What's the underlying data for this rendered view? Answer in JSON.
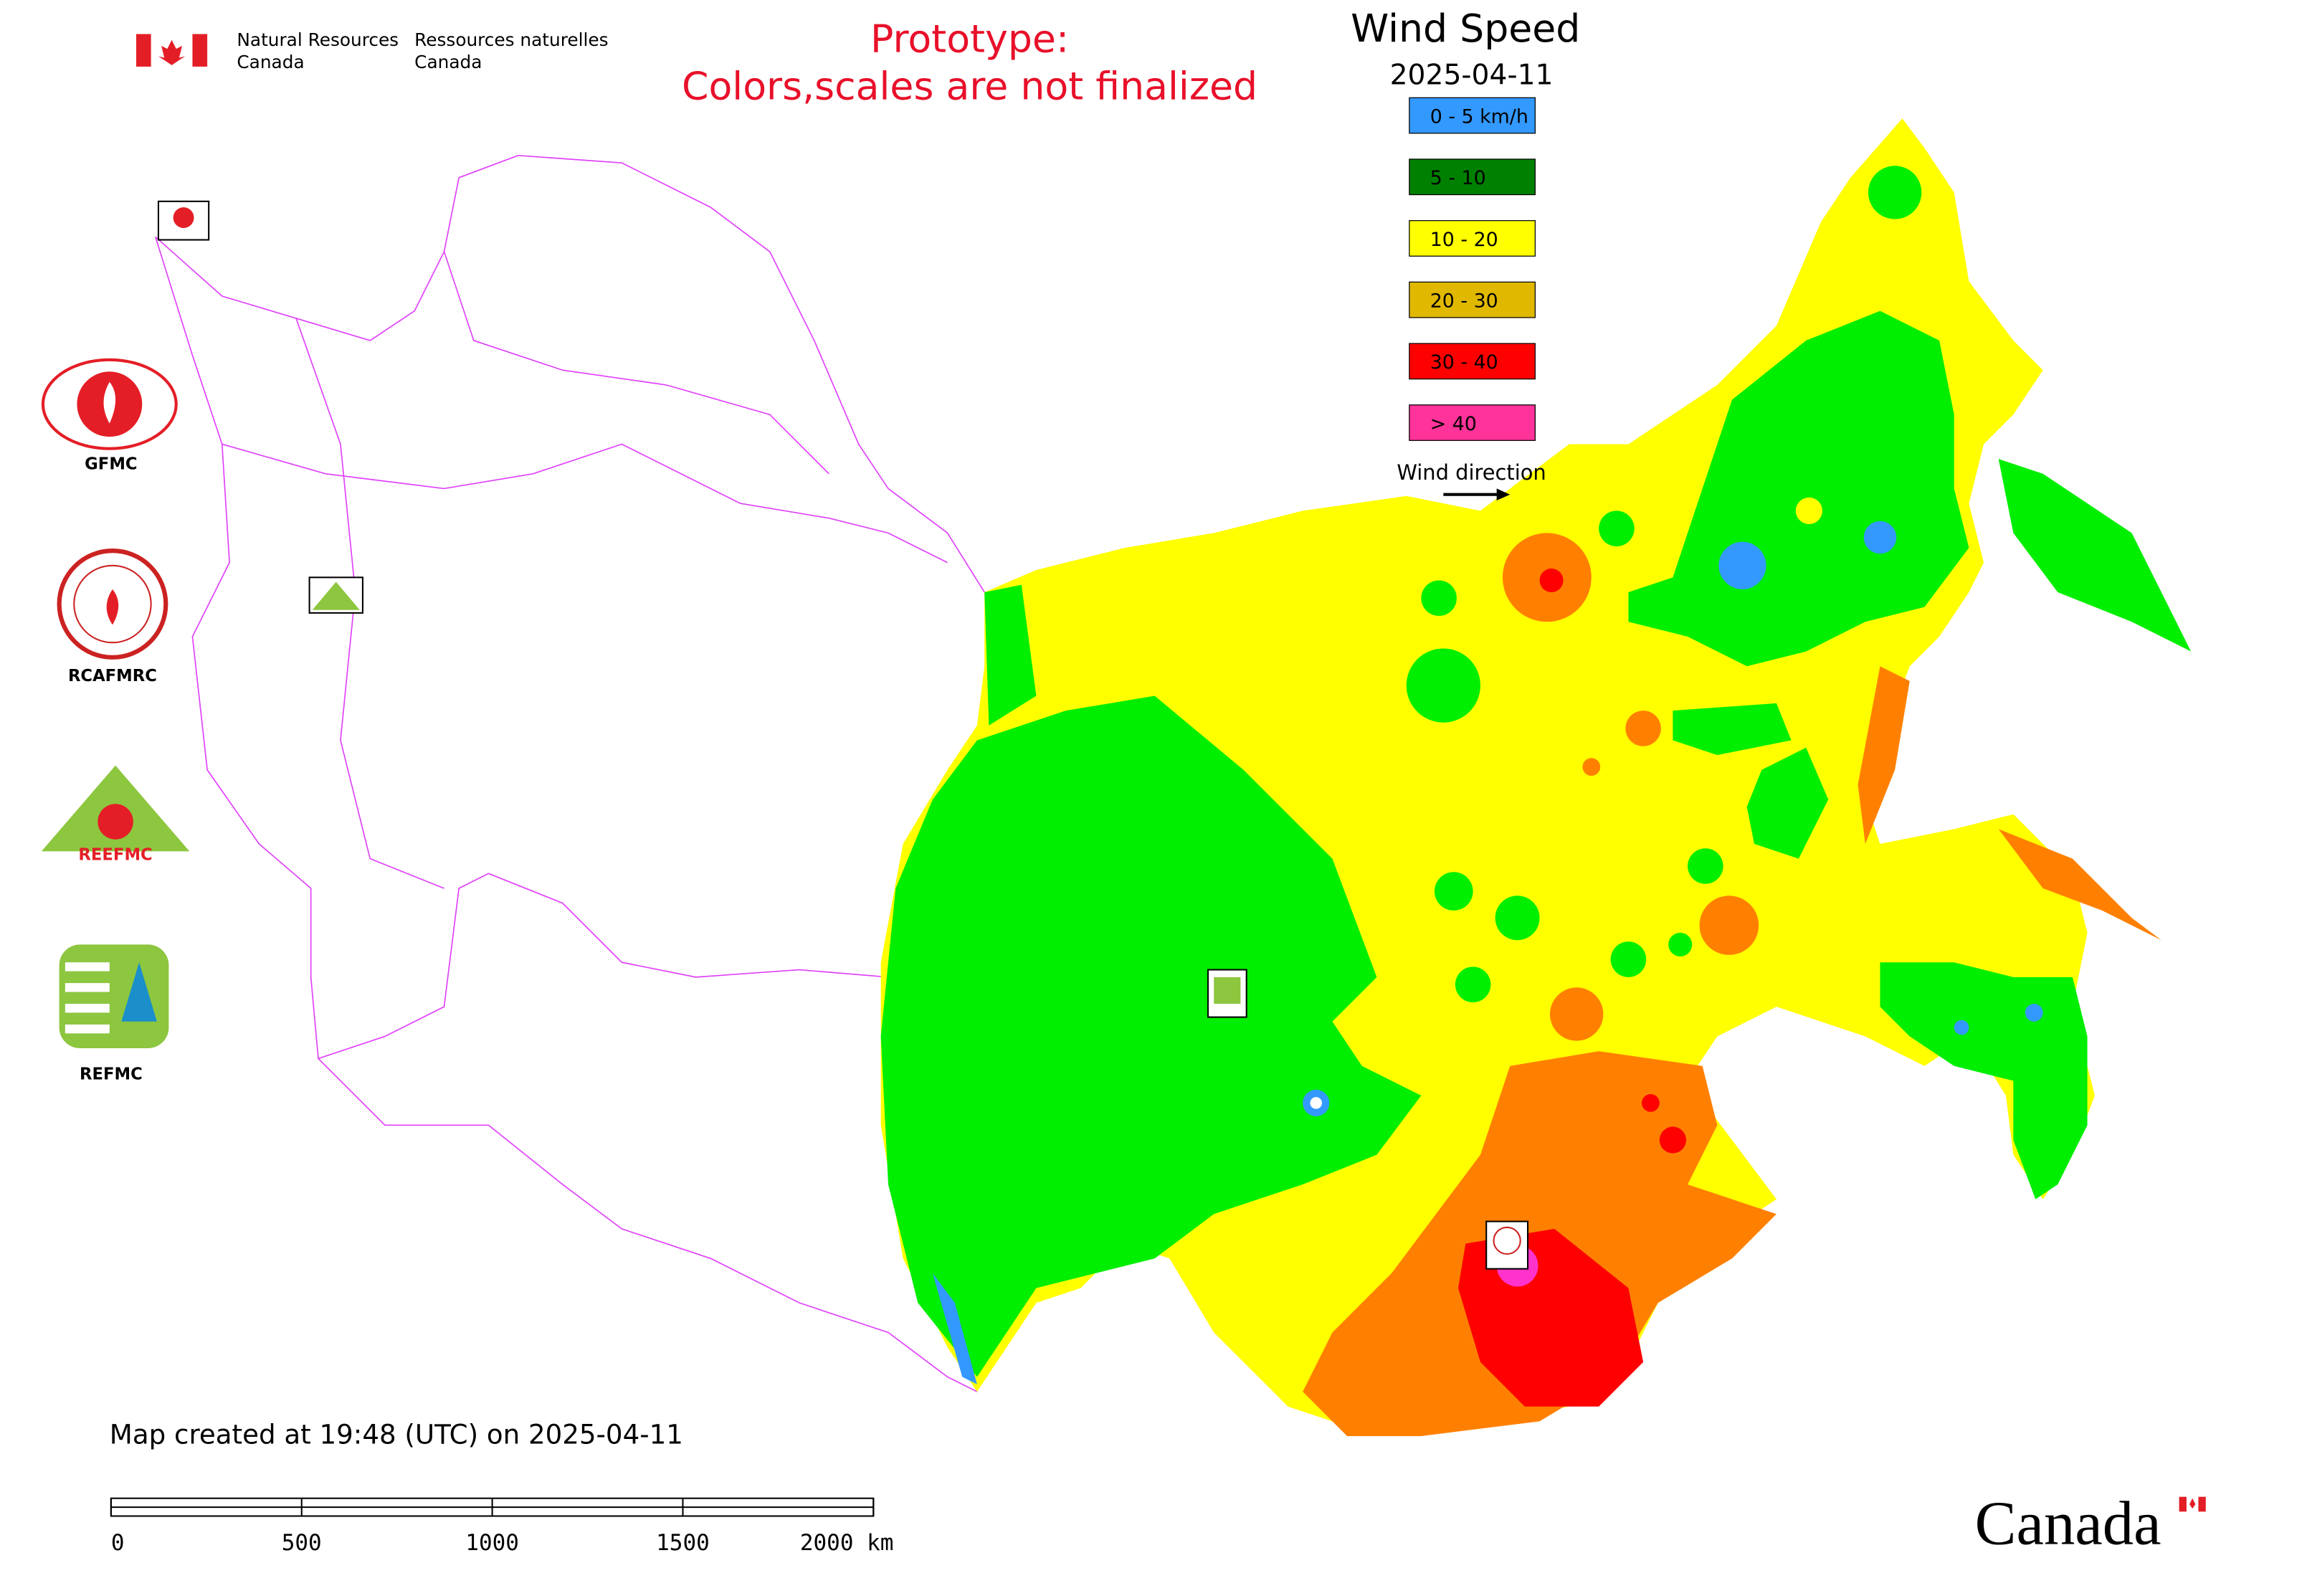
{
  "header": {
    "agency_en_line1": "Natural Resources",
    "agency_en_line2": "Canada",
    "agency_fr_line1": "Ressources naturelles",
    "agency_fr_line2": "Canada"
  },
  "notice": {
    "line1": "Prototype:",
    "line2": "Colors,scales are not finalized"
  },
  "legend": {
    "title": "Wind Speed",
    "date": "2025-04-11",
    "items": [
      {
        "label": "0 - 5 km/h",
        "color": "#3399ff"
      },
      {
        "label": "5 - 10",
        "color": "#008000"
      },
      {
        "label": "10 - 20",
        "color": "#ffff00"
      },
      {
        "label": "20 - 30",
        "color": "#e0b800"
      },
      {
        "label": "30 - 40",
        "color": "#ff0000"
      },
      {
        "label": "> 40",
        "color": "#ff3399"
      }
    ],
    "direction_label": "Wind direction"
  },
  "centers": {
    "gfmc": "GFMC",
    "rcafmrc": "RCAFMRC",
    "reefmc": "REEFMC",
    "refmc": "REFMC"
  },
  "footer": {
    "created": "Map created at 19:48 (UTC) on 2025-04-11",
    "scale_labels": [
      "0",
      "500",
      "1000",
      "1500",
      "2000 km"
    ],
    "wordmark": "Canada"
  }
}
